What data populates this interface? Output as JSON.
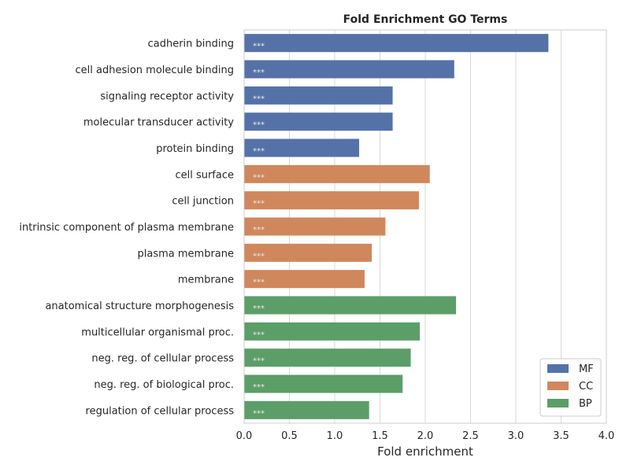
{
  "chart_data": {
    "type": "bar",
    "orientation": "horizontal",
    "title": "Fold Enrichment GO Terms",
    "xlabel": "Fold enrichment",
    "ylabel": "",
    "xlim": [
      0,
      4.0
    ],
    "xticks": [
      "0.0",
      "0.5",
      "1.0",
      "1.5",
      "2.0",
      "2.5",
      "3.0",
      "3.5",
      "4.0"
    ],
    "grid": true,
    "legend": {
      "placement": "bottom-right",
      "entries": [
        {
          "name": "MF",
          "color": "#5572a8"
        },
        {
          "name": "CC",
          "color": "#d0875c"
        },
        {
          "name": "BP",
          "color": "#5b9e68"
        }
      ]
    },
    "bars": [
      {
        "label": "cadherin binding",
        "value": 3.36,
        "group": "MF",
        "sig": "***"
      },
      {
        "label": "cell adhesion molecule binding",
        "value": 2.32,
        "group": "MF",
        "sig": "***"
      },
      {
        "label": "signaling receptor activity",
        "value": 1.64,
        "group": "MF",
        "sig": "***"
      },
      {
        "label": "molecular transducer activity",
        "value": 1.64,
        "group": "MF",
        "sig": "***"
      },
      {
        "label": "protein binding",
        "value": 1.27,
        "group": "MF",
        "sig": "***"
      },
      {
        "label": "cell surface",
        "value": 2.05,
        "group": "CC",
        "sig": "***"
      },
      {
        "label": "cell junction",
        "value": 1.93,
        "group": "CC",
        "sig": "***"
      },
      {
        "label": "intrinsic component of plasma membrane",
        "value": 1.56,
        "group": "CC",
        "sig": "***"
      },
      {
        "label": "plasma membrane",
        "value": 1.41,
        "group": "CC",
        "sig": "***"
      },
      {
        "label": "membrane",
        "value": 1.33,
        "group": "CC",
        "sig": "***"
      },
      {
        "label": "anatomical structure morphogenesis",
        "value": 2.34,
        "group": "BP",
        "sig": "***"
      },
      {
        "label": "multicellular organismal proc.",
        "value": 1.94,
        "group": "BP",
        "sig": "***"
      },
      {
        "label": "neg. reg. of cellular process",
        "value": 1.84,
        "group": "BP",
        "sig": "***"
      },
      {
        "label": "neg. reg. of biological proc.",
        "value": 1.75,
        "group": "BP",
        "sig": "***"
      },
      {
        "label": "regulation of cellular process",
        "value": 1.38,
        "group": "BP",
        "sig": "***"
      }
    ]
  }
}
